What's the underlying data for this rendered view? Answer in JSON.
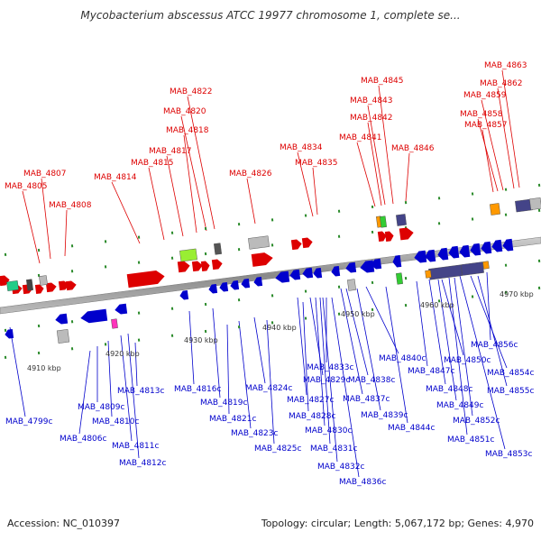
{
  "header": {
    "title": "Mycobacterium abscessus ATCC 19977 chromosome 1, complete se..."
  },
  "footer": {
    "accession": "Accession: NC_010397",
    "summary": "Topology: circular; Length: 5,067,172 bp; Genes: 4,970"
  },
  "colors": {
    "forward": "#dd0000",
    "reverse": "#0000cc",
    "backbone": "#999999"
  },
  "ticks": [
    "4910 kbp",
    "4920 kbp",
    "4930 kbp",
    "4940 kbp",
    "4950 kbp",
    "4960 kbp",
    "4970 kbp"
  ],
  "forward_labels": [
    "MAB_4805",
    "MAB_4807",
    "MAB_4808",
    "MAB_4814",
    "MAB_4815",
    "MAB_4817",
    "MAB_4818",
    "MAB_4820",
    "MAB_4822",
    "MAB_4826",
    "MAB_4834",
    "MAB_4835",
    "MAB_4841",
    "MAB_4842",
    "MAB_4843",
    "MAB_4845",
    "MAB_4846",
    "MAB_4857",
    "MAB_4858",
    "MAB_4859",
    "MAB_4862",
    "MAB_4863"
  ],
  "reverse_labels": [
    "MAB_4799c",
    "MAB_4806c",
    "MAB_4809c",
    "MAB_4810c",
    "MAB_4811c",
    "MAB_4812c",
    "MAB_4813c",
    "MAB_4816c",
    "MAB_4819c",
    "MAB_4821c",
    "MAB_4823c",
    "MAB_4824c",
    "MAB_4825c",
    "MAB_4827c",
    "MAB_4828c",
    "MAB_4829c",
    "MAB_4830c",
    "MAB_4831c",
    "MAB_4832c",
    "MAB_4833c",
    "MAB_4836c",
    "MAB_4837c",
    "MAB_4838c",
    "MAB_4839c",
    "MAB_4840c",
    "MAB_4844c",
    "MAB_4847c",
    "MAB_4848c",
    "MAB_4849c",
    "MAB_4850c",
    "MAB_4851c",
    "MAB_4852c",
    "MAB_4853c",
    "MAB_4854c",
    "MAB_4855c",
    "MAB_4856c"
  ]
}
